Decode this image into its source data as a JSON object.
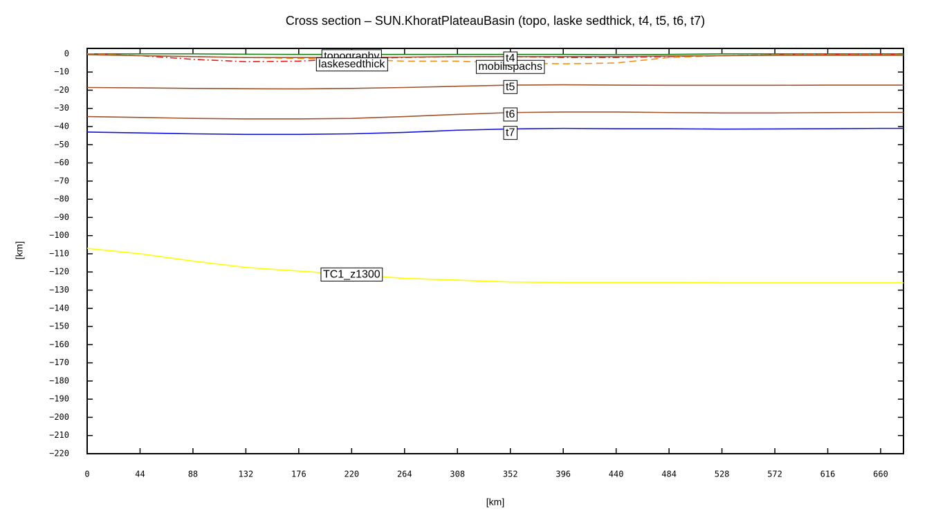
{
  "chart_data": {
    "type": "line",
    "title": "Cross section – SUN.KhoratPlateauBasin (topo, laske sedthick, t4, t5, t6, t7)",
    "x_label": "[km]",
    "y_label": "[km]",
    "x": [
      0,
      44,
      88,
      132,
      176,
      220,
      264,
      308,
      352,
      396,
      440,
      484,
      528,
      572,
      616,
      660,
      679
    ],
    "xlim": [
      0,
      679
    ],
    "xticks": [
      0,
      44,
      88,
      132,
      176,
      220,
      264,
      308,
      352,
      396,
      440,
      484,
      528,
      572,
      616,
      660
    ],
    "ylim": [
      -220,
      3
    ],
    "yticks": [
      0,
      {
        "value": -10,
        "label": "−10"
      },
      {
        "value": -20,
        "label": "−20"
      },
      {
        "value": -30,
        "label": "−30"
      },
      {
        "value": -40,
        "label": "−40"
      },
      {
        "value": -50,
        "label": "−50"
      },
      {
        "value": -60,
        "label": "−60"
      },
      {
        "value": -70,
        "label": "−70"
      },
      {
        "value": -80,
        "label": "−80"
      },
      {
        "value": -90,
        "label": "−90"
      },
      {
        "value": -100,
        "label": "−100"
      },
      {
        "value": -110,
        "label": "−110"
      },
      {
        "value": -120,
        "label": "−120"
      },
      {
        "value": -130,
        "label": "−130"
      },
      {
        "value": -140,
        "label": "−140"
      },
      {
        "value": -150,
        "label": "−150"
      },
      {
        "value": -160,
        "label": "−160"
      },
      {
        "value": -170,
        "label": "−170"
      },
      {
        "value": -180,
        "label": "−180"
      },
      {
        "value": -190,
        "label": "−190"
      },
      {
        "value": -200,
        "label": "−200"
      },
      {
        "value": -210,
        "label": "−210"
      },
      {
        "value": -220,
        "label": "−220"
      }
    ],
    "series": [
      {
        "name": "topography",
        "color": "#1a7a1a",
        "dash": "solid",
        "values": [
          0,
          0,
          0,
          -0.2,
          -0.3,
          -0.3,
          -0.3,
          -0.3,
          -0.3,
          -0.3,
          -0.5,
          -0.3,
          0,
          0,
          0,
          0,
          0
        ]
      },
      {
        "name": "laskesedthick",
        "color": "#e02020",
        "dash": "dashdot",
        "values": [
          0,
          -1,
          -3,
          -4.3,
          -4,
          -2.5,
          -2,
          -1.5,
          -1.5,
          -2,
          -2,
          -1.5,
          -1,
          -0.5,
          -0.3,
          -0.3,
          -0.3
        ]
      },
      {
        "name": "mobilispachs",
        "color": "#f0901a",
        "dash": "dashed",
        "values": [
          0,
          -1,
          -1.5,
          -2,
          -2.5,
          -3,
          -4,
          -4,
          -5,
          -5.5,
          -5,
          -2,
          -1,
          -0.5,
          -0.5,
          -0.5,
          -0.5
        ]
      },
      {
        "name": "t4",
        "color": "#a0522d",
        "dash": "solid",
        "values": [
          -0.5,
          -1,
          -1.5,
          -2,
          -2,
          -2,
          -1.8,
          -1.5,
          -1.5,
          -1.5,
          -1.5,
          -1.2,
          -1,
          -0.8,
          -0.8,
          -0.8,
          -0.8
        ]
      },
      {
        "name": "t5",
        "color": "#a0522d",
        "dash": "solid",
        "values": [
          -18.5,
          -18.7,
          -19,
          -19.2,
          -19.3,
          -19,
          -18.5,
          -17.8,
          -17.2,
          -17,
          -17.2,
          -17.3,
          -17.3,
          -17.3,
          -17.2,
          -17.2,
          -17.2
        ]
      },
      {
        "name": "t6",
        "color": "#a0522d",
        "dash": "solid",
        "values": [
          -34.5,
          -35,
          -35.5,
          -35.8,
          -35.8,
          -35.5,
          -34.5,
          -33.3,
          -32.3,
          -32,
          -32,
          -32.3,
          -32.5,
          -32.5,
          -32.3,
          -32.2,
          -32.2
        ]
      },
      {
        "name": "t7",
        "color": "#1010e0",
        "dash": "solid",
        "values": [
          -43,
          -43.5,
          -44,
          -44.3,
          -44.3,
          -44,
          -43.2,
          -42,
          -41.3,
          -41,
          -41.2,
          -41.2,
          -41.4,
          -41.3,
          -41.2,
          -41,
          -41
        ]
      },
      {
        "name": "TC1_z1300",
        "color": "#ffff00",
        "dash": "solid",
        "values": [
          -107,
          -110,
          -114,
          -117.5,
          -119.5,
          -121.5,
          -123.5,
          -124.5,
          -125.5,
          -125.8,
          -125.8,
          -125.8,
          -126,
          -126,
          -126,
          -126,
          -126
        ]
      }
    ]
  }
}
